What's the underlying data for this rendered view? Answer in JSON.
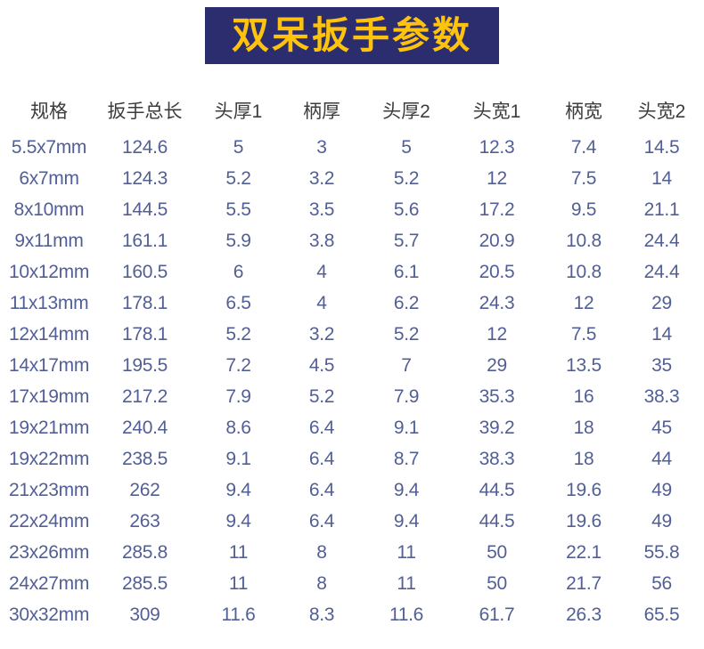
{
  "banner": {
    "label": "双呆扳手参数"
  },
  "colors": {
    "banner_bg": "#2b2d6e",
    "banner_text": "#ffc30e",
    "header_text": "#3c3c3c",
    "value_text": "#525f96"
  },
  "chart_data": {
    "type": "table",
    "title": "双呆扳手参数",
    "columns": [
      "规格",
      "扳手总长",
      "头厚1",
      "柄厚",
      "头厚2",
      "头宽1",
      "柄宽",
      "头宽2"
    ],
    "rows": [
      [
        "5.5x7mm",
        "124.6",
        "5",
        "3",
        "5",
        "12.3",
        "7.4",
        "14.5"
      ],
      [
        "6x7mm",
        "124.3",
        "5.2",
        "3.2",
        "5.2",
        "12",
        "7.5",
        "14"
      ],
      [
        "8x10mm",
        "144.5",
        "5.5",
        "3.5",
        "5.6",
        "17.2",
        "9.5",
        "21.1"
      ],
      [
        "9x11mm",
        "161.1",
        "5.9",
        "3.8",
        "5.7",
        "20.9",
        "10.8",
        "24.4"
      ],
      [
        "10x12mm",
        "160.5",
        "6",
        "4",
        "6.1",
        "20.5",
        "10.8",
        "24.4"
      ],
      [
        "11x13mm",
        "178.1",
        "6.5",
        "4",
        "6.2",
        "24.3",
        "12",
        "29"
      ],
      [
        "12x14mm",
        "178.1",
        "5.2",
        "3.2",
        "5.2",
        "12",
        "7.5",
        "14"
      ],
      [
        "14x17mm",
        "195.5",
        "7.2",
        "4.5",
        "7",
        "29",
        "13.5",
        "35"
      ],
      [
        "17x19mm",
        "217.2",
        "7.9",
        "5.2",
        "7.9",
        "35.3",
        "16",
        "38.3"
      ],
      [
        "19x21mm",
        "240.4",
        "8.6",
        "6.4",
        "9.1",
        "39.2",
        "18",
        "45"
      ],
      [
        "19x22mm",
        "238.5",
        "9.1",
        "6.4",
        "8.7",
        "38.3",
        "18",
        "44"
      ],
      [
        "21x23mm",
        "262",
        "9.4",
        "6.4",
        "9.4",
        "44.5",
        "19.6",
        "49"
      ],
      [
        "22x24mm",
        "263",
        "9.4",
        "6.4",
        "9.4",
        "44.5",
        "19.6",
        "49"
      ],
      [
        "23x26mm",
        "285.8",
        "11",
        "8",
        "11",
        "50",
        "22.1",
        "55.8"
      ],
      [
        "24x27mm",
        "285.5",
        "11",
        "8",
        "11",
        "50",
        "21.7",
        "56"
      ],
      [
        "30x32mm",
        "309",
        "11.6",
        "8.3",
        "11.6",
        "61.7",
        "26.3",
        "65.5"
      ]
    ]
  }
}
